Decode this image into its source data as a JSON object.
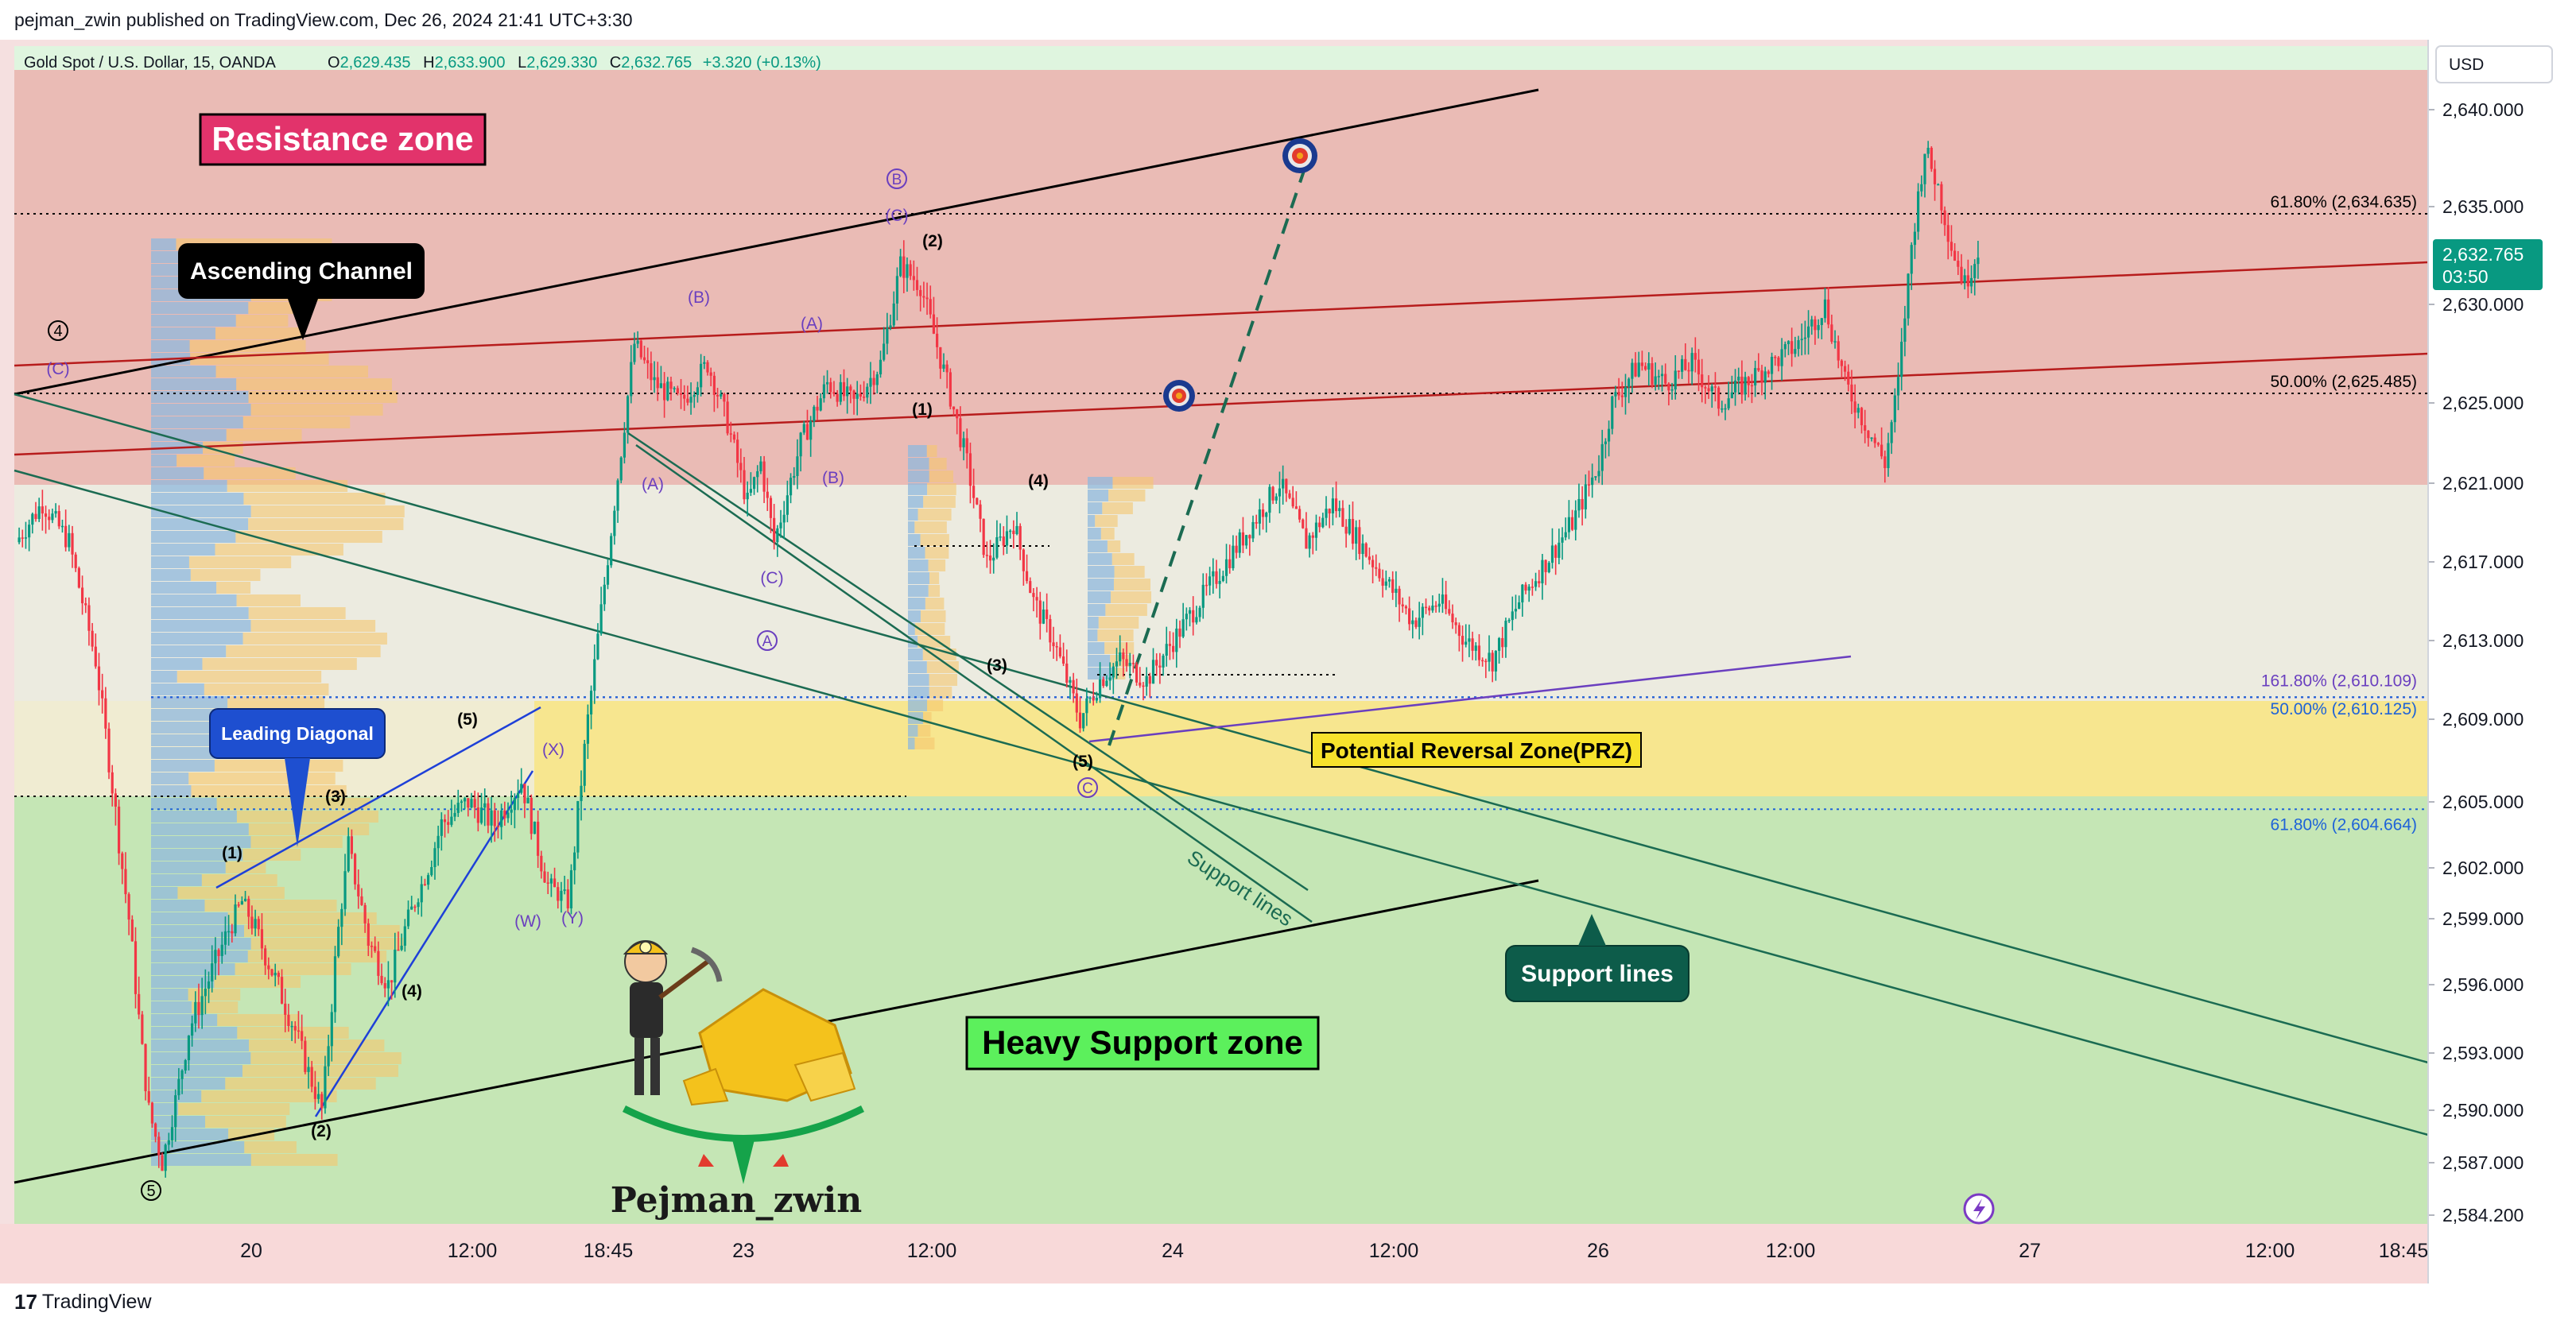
{
  "publisher_line": "pejman_zwin published on TradingView.com, Dec 26, 2024 21:41 UTC+3:30",
  "footer_brand": "TradingView",
  "header": {
    "symbol": "Gold Spot / U.S. Dollar, 15, OANDA",
    "o_label": "O",
    "o": "2,629.435",
    "h_label": "H",
    "h": "2,633.900",
    "l_label": "L",
    "l": "2,629.330",
    "c_label": "C",
    "c": "2,632.765",
    "change": "+3.320 (+0.13%)"
  },
  "currency": "USD",
  "price_tag": {
    "value": "2,632.765",
    "countdown": "03:50"
  },
  "colors": {
    "up": "#089981",
    "down": "#f23645",
    "resistance_zone": "#e8b4ad",
    "prz_zone": "#f7e68f",
    "support_zone": "#c5e6b5",
    "neutral_bg": "#ecebe0"
  },
  "chart_data": {
    "type": "candlestick",
    "symbol": "XAUUSD",
    "timeframe": "15",
    "yticks": [
      2584.2,
      2587.0,
      2590.0,
      2593.0,
      2596.0,
      2599.0,
      2602.0,
      2605.0,
      2609.0,
      2613.0,
      2617.0,
      2621.0,
      2625.0,
      2630.0,
      2635.0,
      2640.0
    ],
    "ytick_labels": [
      "2,584.200",
      "2,587.000",
      "2,590.000",
      "2,593.000",
      "2,596.000",
      "2,599.000",
      "2,602.000",
      "2,605.000",
      "2,609.000",
      "2,613.000",
      "2,617.000",
      "2,621.000",
      "2,625.000",
      "2,630.000",
      "2,635.000",
      "2,640.000"
    ],
    "xtick_labels": [
      "20",
      "12:00",
      "18:45",
      "23",
      "12:00",
      "24",
      "12:00",
      "26",
      "12:00",
      "27",
      "12:00",
      "18:45"
    ],
    "price_path": [
      [
        0,
        2618
      ],
      [
        4,
        2620
      ],
      [
        8,
        2618
      ],
      [
        12,
        2612
      ],
      [
        16,
        2602
      ],
      [
        20,
        2590
      ],
      [
        22,
        2587
      ],
      [
        26,
        2594
      ],
      [
        30,
        2597
      ],
      [
        34,
        2600
      ],
      [
        38,
        2597
      ],
      [
        42,
        2594
      ],
      [
        46,
        2590
      ],
      [
        48,
        2597
      ],
      [
        50,
        2603
      ],
      [
        53,
        2598
      ],
      [
        56,
        2596
      ],
      [
        60,
        2600
      ],
      [
        64,
        2604
      ],
      [
        68,
        2605
      ],
      [
        72,
        2604
      ],
      [
        76,
        2606
      ],
      [
        80,
        2601
      ],
      [
        83,
        2600
      ],
      [
        86,
        2609
      ],
      [
        90,
        2620
      ],
      [
        93,
        2628
      ],
      [
        96,
        2626
      ],
      [
        100,
        2625
      ],
      [
        104,
        2627
      ],
      [
        107,
        2624
      ],
      [
        110,
        2620
      ],
      [
        112,
        2622
      ],
      [
        114,
        2618
      ],
      [
        118,
        2623
      ],
      [
        122,
        2626
      ],
      [
        126,
        2625
      ],
      [
        130,
        2627
      ],
      [
        133,
        2632
      ],
      [
        136,
        2631
      ],
      [
        140,
        2626
      ],
      [
        143,
        2622
      ],
      [
        146,
        2617
      ],
      [
        150,
        2619
      ],
      [
        153,
        2615
      ],
      [
        156,
        2613
      ],
      [
        160,
        2609
      ],
      [
        163,
        2611
      ],
      [
        166,
        2612
      ],
      [
        170,
        2611
      ],
      [
        174,
        2613
      ],
      [
        178,
        2615
      ],
      [
        182,
        2617
      ],
      [
        186,
        2619
      ],
      [
        190,
        2621
      ],
      [
        194,
        2618
      ],
      [
        198,
        2620
      ],
      [
        202,
        2618
      ],
      [
        206,
        2616
      ],
      [
        210,
        2614
      ],
      [
        214,
        2615
      ],
      [
        218,
        2613
      ],
      [
        222,
        2612
      ],
      [
        226,
        2615
      ],
      [
        230,
        2617
      ],
      [
        234,
        2619
      ],
      [
        238,
        2622
      ],
      [
        240,
        2625
      ],
      [
        244,
        2627
      ],
      [
        248,
        2626
      ],
      [
        252,
        2627
      ],
      [
        256,
        2625
      ],
      [
        260,
        2626
      ],
      [
        264,
        2627
      ],
      [
        268,
        2628
      ],
      [
        272,
        2630
      ],
      [
        275,
        2626
      ],
      [
        278,
        2624
      ],
      [
        281,
        2622
      ],
      [
        283,
        2626
      ],
      [
        285,
        2633
      ],
      [
        287,
        2638
      ],
      [
        289,
        2636
      ],
      [
        291,
        2633
      ],
      [
        293,
        2631
      ],
      [
        295,
        2632.8
      ]
    ],
    "horizontal_levels": [
      {
        "label": "61.80% (2,634.635)",
        "price": 2634.635
      },
      {
        "label": "50.00% (2,625.485)",
        "price": 2625.485
      },
      {
        "label": "161.80% (2,610.109)",
        "price": 2610.109
      },
      {
        "label": "50.00% (2,610.125)",
        "price": 2610.125
      },
      {
        "label": "61.80% (2,604.664)",
        "price": 2604.664
      }
    ],
    "zones": [
      {
        "name": "Resistance zone",
        "from": 2621,
        "to": 2642
      },
      {
        "name": "Potential Reversal Zone(PRZ)",
        "from": 2605,
        "to": 2610
      },
      {
        "name": "Heavy Support zone",
        "from": 2584,
        "to": 2605
      }
    ]
  },
  "annotations": {
    "resistance_zone": "Resistance zone",
    "heavy_support_zone": "Heavy Support zone",
    "prz": "Potential Reversal Zone(PRZ)",
    "ascending_channel": "Ascending Channel",
    "leading_diagonal": "Leading Diagonal",
    "support_lines": "Support lines",
    "support_lines_rotated": "Support lines",
    "author_signature": "Pejman_zwin"
  },
  "wave_labels": {
    "w4_circle": "4",
    "w5_circle": "5",
    "c_top_left": "(C)",
    "ld1": "(1)",
    "ld2": "(2)",
    "ld3": "(3)",
    "ld4": "(4)",
    "ld5": "(5)",
    "wx": "(X)",
    "ww": "(W)",
    "wy": "(Y)",
    "a_paren": "(A)",
    "b_paren": "(B)",
    "a_paren2": "(A)",
    "b_paren2": "(B)",
    "c_paren": "(C)",
    "circled_a": "A",
    "circled_b": "B",
    "c_paren_top": "(C)",
    "i1": "(1)",
    "i2": "(2)",
    "i3": "(3)",
    "i4": "(4)",
    "i5": "(5)",
    "circled_c": "C"
  }
}
